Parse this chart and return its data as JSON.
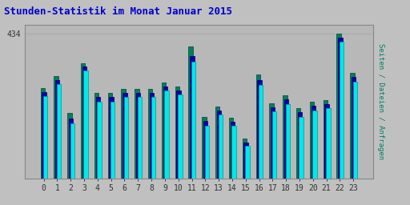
{
  "title": "Stunden-Statistik im Monat Januar 2015",
  "title_color": "#0000cc",
  "background_color": "#c0c0c0",
  "plot_bg_color": "#b8b8b8",
  "ylabel": "Seiten / Dateien / Anfragen",
  "ylabel_color": "#008060",
  "hours": [
    0,
    1,
    2,
    3,
    4,
    5,
    6,
    7,
    8,
    9,
    10,
    11,
    12,
    13,
    14,
    15,
    16,
    17,
    18,
    19,
    20,
    21,
    22,
    23
  ],
  "series_pages": [
    270,
    305,
    195,
    345,
    255,
    255,
    268,
    268,
    268,
    288,
    275,
    395,
    185,
    215,
    182,
    118,
    310,
    225,
    248,
    210,
    230,
    235,
    434,
    315
  ],
  "series_files": [
    258,
    293,
    180,
    334,
    243,
    243,
    256,
    256,
    256,
    276,
    263,
    365,
    172,
    203,
    170,
    108,
    295,
    213,
    236,
    198,
    218,
    223,
    422,
    303
  ],
  "series_requests": [
    245,
    282,
    165,
    323,
    230,
    230,
    243,
    243,
    243,
    263,
    250,
    350,
    158,
    190,
    157,
    97,
    280,
    200,
    222,
    185,
    204,
    210,
    409,
    290
  ],
  "color_pages": "#008060",
  "color_files": "#0000bb",
  "color_requests": "#00e8e8",
  "ymax": 460,
  "ytick_val": 434,
  "grid_color": "#aaaaaa",
  "bar_width": 0.32,
  "title_fontsize": 9,
  "tick_fontsize": 7
}
